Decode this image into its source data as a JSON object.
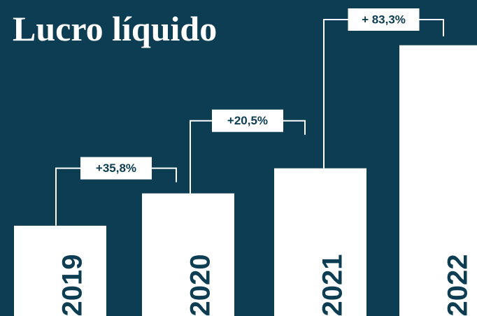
{
  "chart_data": {
    "type": "bar",
    "title": "Lucro líquido",
    "categories": [
      "2019",
      "2020",
      "2021",
      "2022"
    ],
    "values": [
      100,
      135.8,
      163.6,
      299.9
    ],
    "color": "#ffffff",
    "background": "#0d3d52",
    "ylim": [
      0,
      350
    ],
    "annotations": [
      "+35,8%",
      "+20,5%",
      "+ 83,3%"
    ]
  }
}
